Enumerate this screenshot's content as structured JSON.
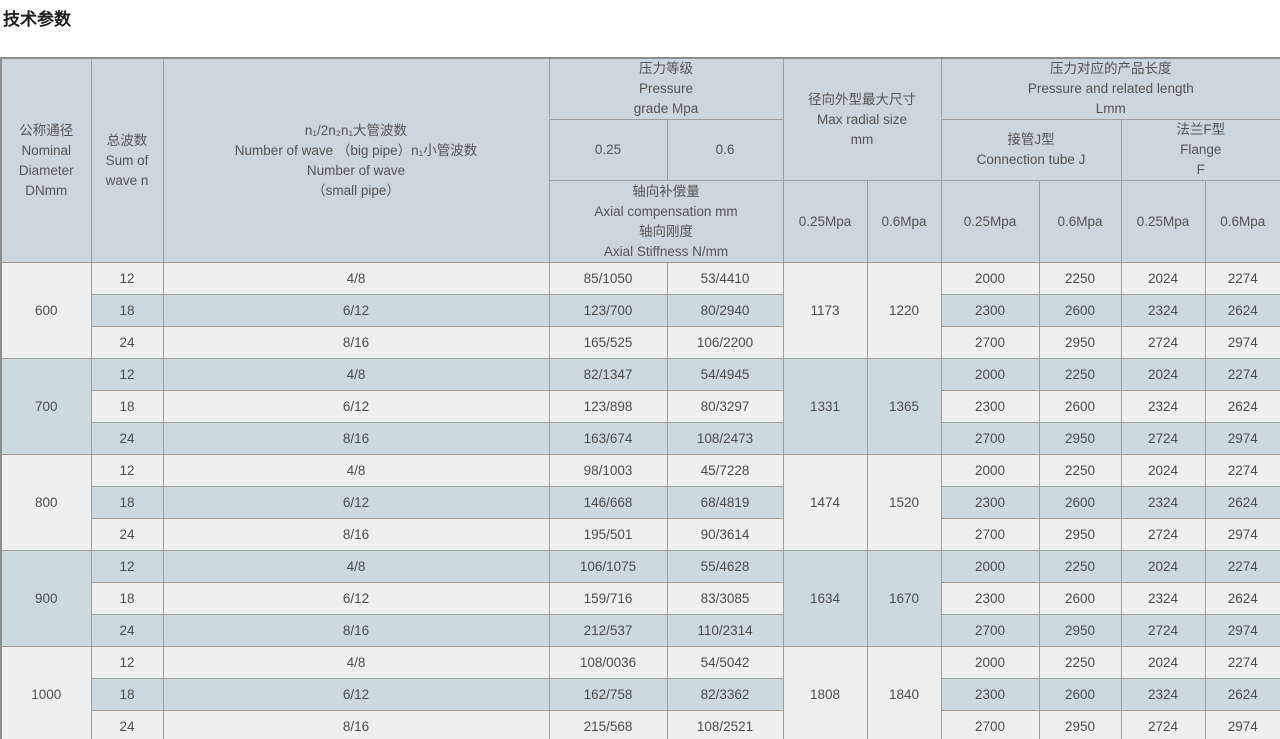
{
  "page_title": "技术参数",
  "colors": {
    "header_bg": "#cbd6de",
    "header_light_cell_bg": "#f0f0f0",
    "row_stripe_light": "#efefef",
    "row_stripe_blue": "#ccd9e1",
    "border": "#9c9c9c",
    "text": "#4c4c4c"
  },
  "table": {
    "header": {
      "nominal_diameter": "公称通径\nNominal\nDiameter\nDNmm",
      "sum_of_wave": "总波数\nSum of\nwave n",
      "wave_number": "n₁/2n₂n₁大管波数\nNumber of wave （big pipe）n₁小管波数\nNumber of wave\n（small pipe）",
      "pressure_grade": "压力等级\nPressure\ngrade Mpa",
      "pressure_025": "0.25",
      "pressure_06": "0.6",
      "axial": "轴向补偿量\nAxial compensation mm\n轴向刚度\nAxial Stiffness N/mm",
      "max_radial": "径向外型最大尺寸\nMax radial size\nmm",
      "radial_025": "0.25Mpa",
      "radial_06": "0.6Mpa",
      "length_title": "压力对应的产品长度\nPressure and related length\nLmm",
      "tube_j": "接管J型\nConnection tube J",
      "flange_f": "法兰F型\nFlange\nF",
      "len_j_025": "0.25Mpa",
      "len_j_06": "0.6Mpa",
      "len_f_025": "0.25Mpa",
      "len_f_06": "0.6Mpa"
    },
    "groups": [
      {
        "dn": "600",
        "radial_025": "1173",
        "radial_06": "1220",
        "rows": [
          {
            "n": "12",
            "wave": "4/8",
            "axial_025": "85/1050",
            "axial_06": "53/4410",
            "lengths": [
              "2000",
              "2250",
              "2024",
              "2274"
            ]
          },
          {
            "n": "18",
            "wave": "6/12",
            "axial_025": "123/700",
            "axial_06": "80/2940",
            "lengths": [
              "2300",
              "2600",
              "2324",
              "2624"
            ]
          },
          {
            "n": "24",
            "wave": "8/16",
            "axial_025": "165/525",
            "axial_06": "106/2200",
            "lengths": [
              "2700",
              "2950",
              "2724",
              "2974"
            ]
          }
        ]
      },
      {
        "dn": "700",
        "radial_025": "1331",
        "radial_06": "1365",
        "rows": [
          {
            "n": "12",
            "wave": "4/8",
            "axial_025": "82/1347",
            "axial_06": "54/4945",
            "lengths": [
              "2000",
              "2250",
              "2024",
              "2274"
            ]
          },
          {
            "n": "18",
            "wave": "6/12",
            "axial_025": "123/898",
            "axial_06": "80/3297",
            "lengths": [
              "2300",
              "2600",
              "2324",
              "2624"
            ]
          },
          {
            "n": "24",
            "wave": "8/16",
            "axial_025": "163/674",
            "axial_06": "108/2473",
            "lengths": [
              "2700",
              "2950",
              "2724",
              "2974"
            ]
          }
        ]
      },
      {
        "dn": "800",
        "radial_025": "1474",
        "radial_06": "1520",
        "rows": [
          {
            "n": "12",
            "wave": "4/8",
            "axial_025": "98/1003",
            "axial_06": "45/7228",
            "lengths": [
              "2000",
              "2250",
              "2024",
              "2274"
            ]
          },
          {
            "n": "18",
            "wave": "6/12",
            "axial_025": "146/668",
            "axial_06": "68/4819",
            "lengths": [
              "2300",
              "2600",
              "2324",
              "2624"
            ]
          },
          {
            "n": "24",
            "wave": "8/16",
            "axial_025": "195/501",
            "axial_06": "90/3614",
            "lengths": [
              "2700",
              "2950",
              "2724",
              "2974"
            ]
          }
        ]
      },
      {
        "dn": "900",
        "radial_025": "1634",
        "radial_06": "1670",
        "rows": [
          {
            "n": "12",
            "wave": "4/8",
            "axial_025": "106/1075",
            "axial_06": "55/4628",
            "lengths": [
              "2000",
              "2250",
              "2024",
              "2274"
            ]
          },
          {
            "n": "18",
            "wave": "6/12",
            "axial_025": "159/716",
            "axial_06": "83/3085",
            "lengths": [
              "2300",
              "2600",
              "2324",
              "2624"
            ]
          },
          {
            "n": "24",
            "wave": "8/16",
            "axial_025": "212/537",
            "axial_06": "110/2314",
            "lengths": [
              "2700",
              "2950",
              "2724",
              "2974"
            ]
          }
        ]
      },
      {
        "dn": "1000",
        "radial_025": "1808",
        "radial_06": "1840",
        "rows": [
          {
            "n": "12",
            "wave": "4/8",
            "axial_025": "108/0036",
            "axial_06": "54/5042",
            "lengths": [
              "2000",
              "2250",
              "2024",
              "2274"
            ]
          },
          {
            "n": "18",
            "wave": "6/12",
            "axial_025": "162/758",
            "axial_06": "82/3362",
            "lengths": [
              "2300",
              "2600",
              "2324",
              "2624"
            ]
          },
          {
            "n": "24",
            "wave": "8/16",
            "axial_025": "215/568",
            "axial_06": "108/2521",
            "lengths": [
              "2700",
              "2950",
              "2724",
              "2974"
            ]
          }
        ]
      }
    ]
  }
}
